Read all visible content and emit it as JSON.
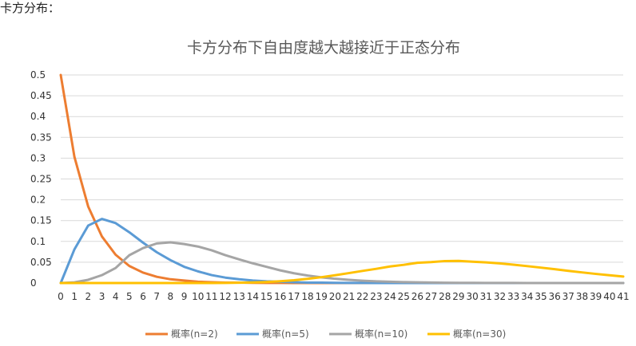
{
  "page": {
    "heading": "卡方分布："
  },
  "chart_data": {
    "type": "line",
    "title": "卡方分布下自由度越大越接近于正态分布",
    "xlabel": "",
    "ylabel": "",
    "x": [
      0,
      1,
      2,
      3,
      4,
      5,
      6,
      7,
      8,
      9,
      10,
      11,
      12,
      13,
      14,
      15,
      16,
      17,
      18,
      19,
      20,
      21,
      22,
      23,
      24,
      25,
      26,
      27,
      28,
      29,
      30,
      31,
      32,
      33,
      34,
      35,
      36,
      37,
      38,
      39,
      40,
      41
    ],
    "ylim": [
      0,
      0.5
    ],
    "yticks": [
      "0",
      "0.05",
      "0.1",
      "0.15",
      "0.2",
      "0.25",
      "0.3",
      "0.35",
      "0.4",
      "0.45",
      "0.5"
    ],
    "grid": true,
    "legend_position": "bottom",
    "series": [
      {
        "name": "概率(n=2)",
        "color": "#ED7D31",
        "values": [
          0.5,
          0.303,
          0.184,
          0.112,
          0.068,
          0.041,
          0.025,
          0.015,
          0.009,
          0.006,
          0.003,
          0.002,
          0.001,
          0.001,
          0.0005,
          0.0003,
          0.0002,
          0.0001,
          0,
          0,
          0,
          0,
          0,
          0,
          0,
          0,
          0,
          0,
          0,
          0,
          0,
          0,
          0,
          0,
          0,
          0,
          0,
          0,
          0,
          0,
          0,
          0
        ]
      },
      {
        "name": "概率(n=5)",
        "color": "#5B9BD5",
        "values": [
          0,
          0.081,
          0.138,
          0.154,
          0.144,
          0.122,
          0.097,
          0.074,
          0.055,
          0.039,
          0.028,
          0.019,
          0.013,
          0.009,
          0.006,
          0.004,
          0.003,
          0.002,
          0.001,
          0.001,
          0.0005,
          0.0003,
          0.0002,
          0.0001,
          0,
          0,
          0,
          0,
          0,
          0,
          0,
          0,
          0,
          0,
          0,
          0,
          0,
          0,
          0,
          0,
          0,
          0
        ]
      },
      {
        "name": "概率(n=10)",
        "color": "#A5A5A5",
        "values": [
          0,
          0.0016,
          0.0077,
          0.0189,
          0.0361,
          0.0668,
          0.084,
          0.0951,
          0.0977,
          0.0937,
          0.0877,
          0.0786,
          0.0669,
          0.0569,
          0.0474,
          0.0389,
          0.0304,
          0.0235,
          0.018,
          0.0136,
          0.0102,
          0.0076,
          0.0056,
          0.0041,
          0.003,
          0.0022,
          0.0016,
          0.0012,
          0.0008,
          0.0006,
          0.0004,
          0.0003,
          0.0002,
          0.0002,
          0.0001,
          0.0001,
          0,
          0,
          0,
          0,
          0,
          0
        ]
      },
      {
        "name": "概率(n=30)",
        "color": "#FFC000",
        "values": [
          0,
          0,
          0,
          0,
          0,
          0,
          0,
          0,
          0,
          0,
          0,
          0.0001,
          0.0003,
          0.0007,
          0.0014,
          0.0025,
          0.0043,
          0.0068,
          0.0101,
          0.014,
          0.0187,
          0.0238,
          0.0291,
          0.0341,
          0.0398,
          0.0437,
          0.0486,
          0.0503,
          0.0528,
          0.0531,
          0.0513,
          0.0496,
          0.0471,
          0.0441,
          0.0406,
          0.037,
          0.0332,
          0.0293,
          0.0255,
          0.0219,
          0.0186,
          0.0156
        ]
      }
    ]
  }
}
